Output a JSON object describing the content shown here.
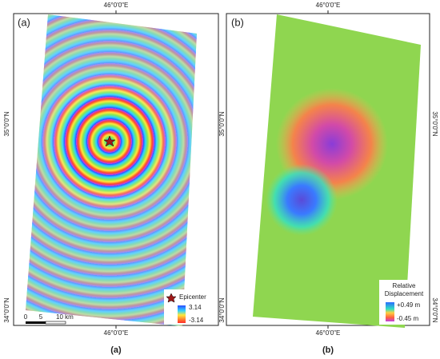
{
  "panels": [
    {
      "label": "(a)",
      "caption": "(a)",
      "lon_top": "46°0'0\"E",
      "lon_bottom": "46°0'0\"E",
      "lat_left": [
        "35°0'0\"N",
        "34°0'0\"N"
      ],
      "legend": {
        "marker": "Epicenter",
        "colorbar_max": "3.14",
        "colorbar_min": "-3.14"
      },
      "scale_bar": [
        "0",
        "5",
        "10 km"
      ]
    },
    {
      "label": "(b)",
      "caption": "(b)",
      "lon_top": "46°0'0\"E",
      "lon_bottom": "46°0'0\"E",
      "lat_left": [
        "35°0'0\"N",
        "34°0'0\"N"
      ],
      "lat_right": [
        "35°0'0\"N",
        "34°0'0\"N"
      ],
      "legend": {
        "title": [
          "Relative",
          "Displacement"
        ],
        "colorbar_max": "+0.49 m",
        "colorbar_min": "-0.45 m"
      }
    }
  ]
}
